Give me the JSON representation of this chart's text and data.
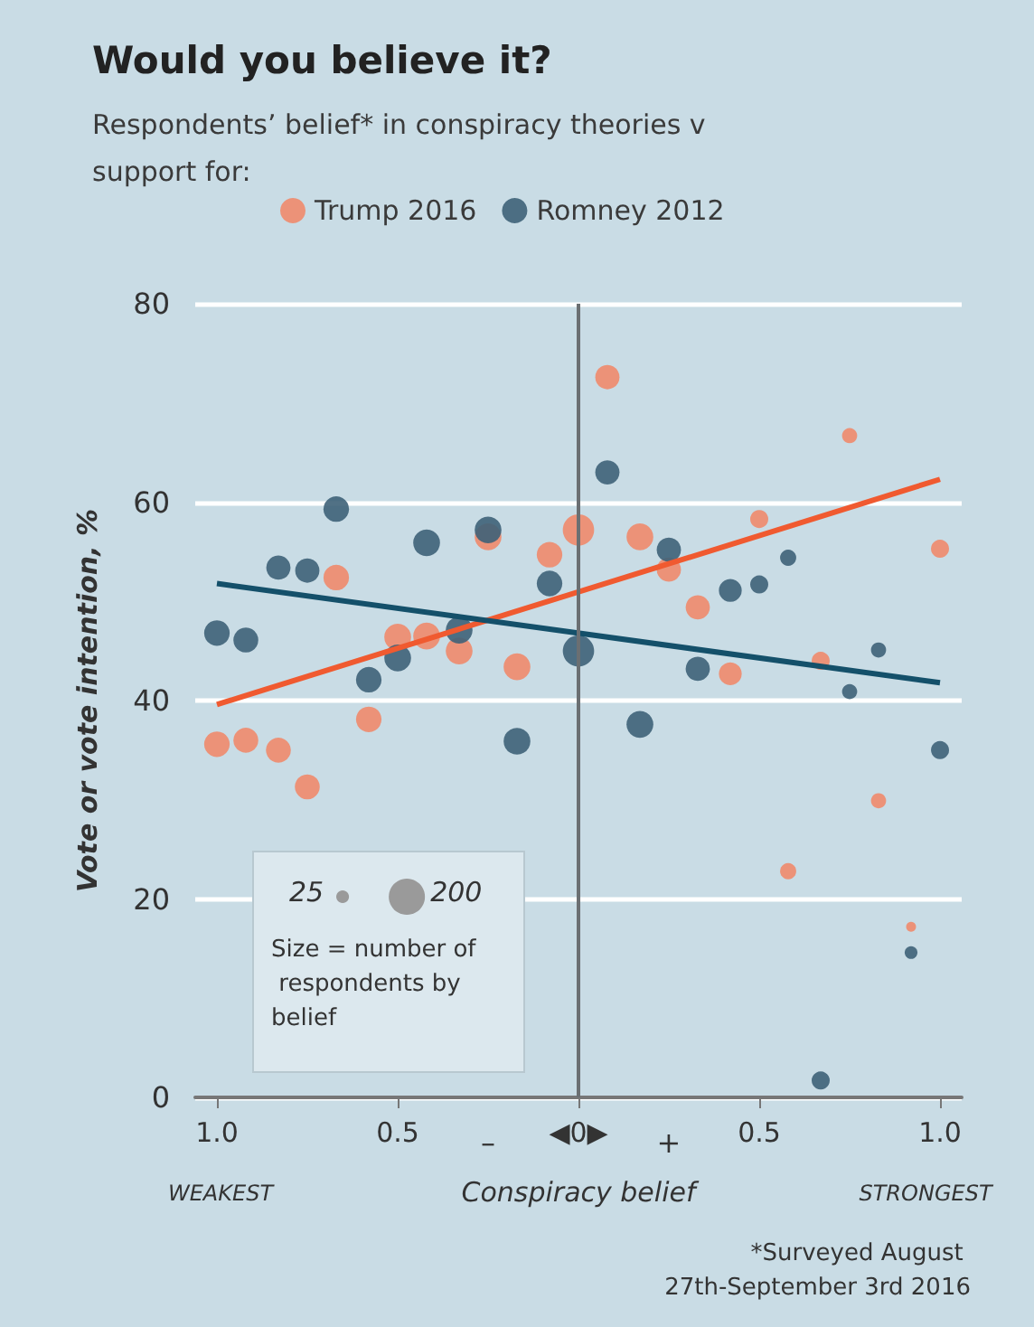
{
  "chart_data": {
    "type": "bubble",
    "title": "Would you believe it?",
    "subtitle": "Respondents’ belief* in conspiracy theories v support for:",
    "xlabel": "Conspiracy belief",
    "ylabel": "Vote or vote intention, %",
    "xlim": [
      -1.06,
      1.06
    ],
    "xticks": [
      {
        "value": -1,
        "label": "1.0"
      },
      {
        "value": -0.5,
        "label": "0.5"
      },
      {
        "value": 0,
        "label": "◀0▶"
      },
      {
        "value": 0.5,
        "label": "0.5"
      },
      {
        "value": 1,
        "label": "1.0"
      }
    ],
    "ylim": [
      0,
      80
    ],
    "yticks": [
      0,
      20,
      40,
      60,
      80
    ],
    "grid": "y",
    "legend": "top left",
    "size_legend": [
      25,
      200
    ],
    "ref_lines": [
      {
        "axis": "x",
        "value": 0,
        "color": "#6b6f72"
      }
    ],
    "annotations": [
      "Size = number of respondents by belief",
      "–",
      "+",
      "WEAKEST",
      "STRONGEST",
      "*Surveyed August 27th-September 3rd 2016"
    ],
    "series": [
      {
        "name": "Trump 2016",
        "color": "#f08a6c",
        "x": [
          -1,
          -0.92,
          -0.83,
          -0.75,
          -0.67,
          -0.58,
          -0.5,
          -0.42,
          -0.33,
          -0.25,
          -0.17,
          -0.08,
          0,
          0.08,
          0.17,
          0.25,
          0.33,
          0.42,
          0.5,
          0.58,
          0.67,
          0.75,
          0.83,
          0.92,
          1
        ],
        "values": [
          35.6,
          36.0,
          35.0,
          31.3,
          52.4,
          38.1,
          46.4,
          46.5,
          45.0,
          56.5,
          43.4,
          54.7,
          57.2,
          72.6,
          56.5,
          53.2,
          49.4,
          42.7,
          58.3,
          22.8,
          44.0,
          66.7,
          29.9,
          17.2,
          55.3
        ],
        "sizes": [
          100,
          95,
          95,
          95,
          100,
          100,
          110,
          110,
          110,
          110,
          110,
          100,
          150,
          90,
          110,
          90,
          90,
          80,
          50,
          40,
          50,
          35,
          35,
          15,
          50
        ]
      },
      {
        "name": "Romney 2012",
        "color": "#3e6278",
        "x": [
          -1,
          -0.92,
          -0.83,
          -0.75,
          -0.67,
          -0.58,
          -0.5,
          -0.42,
          -0.33,
          -0.25,
          -0.17,
          -0.08,
          0,
          0.08,
          0.17,
          0.25,
          0.33,
          0.42,
          0.5,
          0.58,
          0.67,
          0.75,
          0.83,
          0.92,
          1
        ],
        "values": [
          46.8,
          46.1,
          53.4,
          53.1,
          59.3,
          42.1,
          44.3,
          55.9,
          47.1,
          57.2,
          35.9,
          51.8,
          45.0,
          63.0,
          37.6,
          55.2,
          43.2,
          51.1,
          51.7,
          54.4,
          1.7,
          40.9,
          45.1,
          14.6,
          35.0
        ],
        "sizes": [
          100,
          95,
          90,
          90,
          100,
          100,
          110,
          110,
          110,
          110,
          110,
          100,
          150,
          90,
          110,
          90,
          90,
          80,
          50,
          40,
          50,
          35,
          35,
          25,
          50
        ]
      },
      {
        "type": "line",
        "color": "#f05a30",
        "x": [
          -1,
          1
        ],
        "values": [
          39.6,
          62.3
        ]
      },
      {
        "type": "line",
        "color": "#14506a",
        "x": [
          -1,
          1
        ],
        "values": [
          51.8,
          41.8
        ]
      }
    ]
  }
}
